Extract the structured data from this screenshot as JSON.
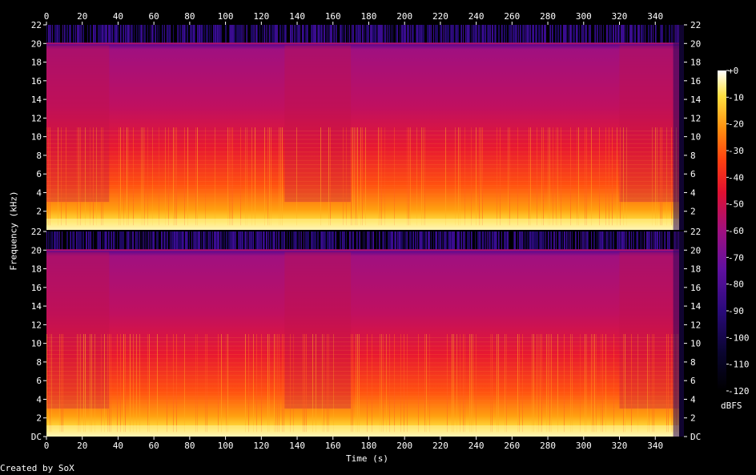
{
  "chart_data": {
    "type": "heatmap",
    "title": "",
    "xlabel": "Time (s)",
    "ylabel": "Frequency (kHz)",
    "xlim": [
      0,
      356
    ],
    "ylim": [
      0,
      22
    ],
    "x_ticks": [
      "0",
      "20",
      "40",
      "60",
      "80",
      "100",
      "120",
      "140",
      "160",
      "180",
      "200",
      "220",
      "240",
      "260",
      "280",
      "300",
      "320",
      "340"
    ],
    "y_ticks_top": [
      "2",
      "4",
      "6",
      "8",
      "10",
      "12",
      "14",
      "16",
      "18",
      "20",
      "22"
    ],
    "y_ticks_bottom": [
      "DC",
      "2",
      "4",
      "6",
      "8",
      "10",
      "12",
      "14",
      "16",
      "18",
      "20",
      "22"
    ],
    "colorbar": {
      "label": "dBFS",
      "range": [
        -120,
        0
      ],
      "ticks": [
        "+0",
        "-10",
        "-20",
        "-30",
        "-40",
        "-50",
        "-60",
        "-70",
        "-80",
        "-90",
        "-100",
        "-110",
        "-120"
      ]
    },
    "channels": 2,
    "lowpass_cutoff_khz": 20,
    "quiet_sections_s": [
      [
        0,
        35
      ],
      [
        133,
        170
      ],
      [
        320,
        356
      ]
    ],
    "colors": {
      "background": "#000000",
      "low": "#000000",
      "mid_low": "#3a0a8a",
      "mid": "#c01060",
      "high": "#ff3010",
      "peak": "#ffffff"
    }
  },
  "credit": "Created by SoX"
}
